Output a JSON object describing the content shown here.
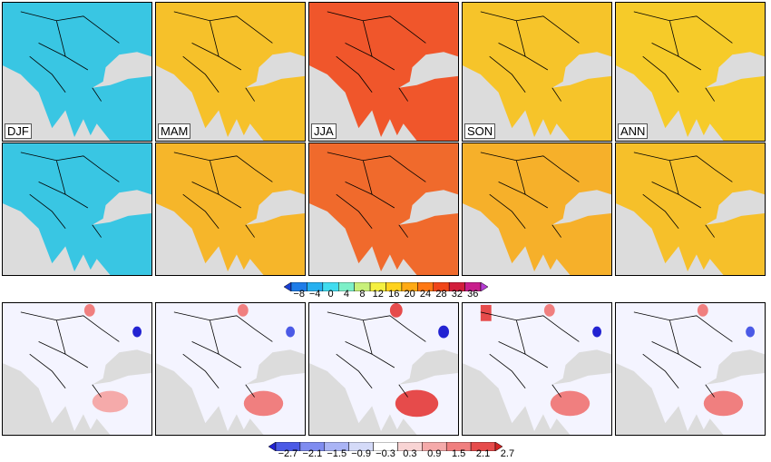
{
  "seasons": [
    "DJF",
    "MAM",
    "JJA",
    "SON",
    "ANN"
  ],
  "colorbar_top": {
    "ticks": [
      "−8",
      "−4",
      "0",
      "4",
      "8",
      "12",
      "16",
      "20",
      "24",
      "28",
      "32",
      "36"
    ],
    "colors": [
      "#1a3fd0",
      "#1e7ce8",
      "#26b0f0",
      "#40dcef",
      "#7df0c8",
      "#c8f07a",
      "#f5f040",
      "#ffd21e",
      "#ffaa14",
      "#ff7814",
      "#f04619",
      "#d21e3c",
      "#c81e8c",
      "#b43cd2"
    ]
  },
  "colorbar_bottom": {
    "ticks": [
      "−2.7",
      "−2.1",
      "−1.5",
      "−0.9",
      "−0.3",
      "0.3",
      "0.9",
      "1.5",
      "2.1",
      "2.7"
    ],
    "colors": [
      "#2323d2",
      "#4b5ae6",
      "#7f8cf0",
      "#aab4f5",
      "#d4daf8",
      "#ffffff",
      "#f8d4d4",
      "#f5aaaa",
      "#f07f7f",
      "#e64b4b",
      "#d22323"
    ]
  },
  "panel_fill": {
    "row1": [
      "#39c6e3",
      "#f6c12a",
      "#f0562b",
      "#f6c42a",
      "#f6cb29"
    ],
    "row2": [
      "#39c6e3",
      "#f6b62a",
      "#f06a2c",
      "#f6b02a",
      "#f6c02a"
    ],
    "ocean": "#dcdcdc"
  }
}
